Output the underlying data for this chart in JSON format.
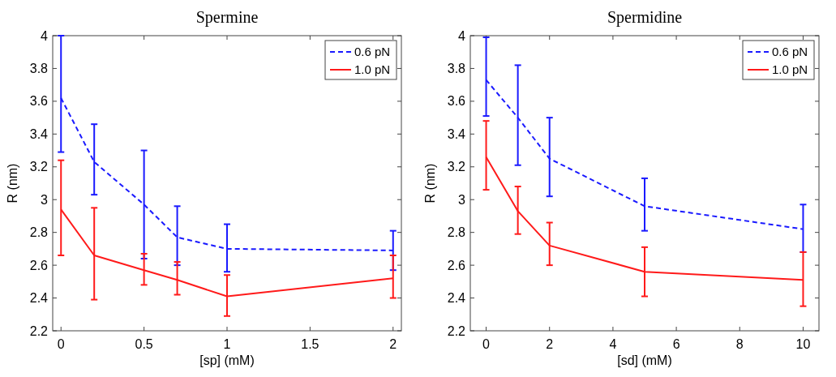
{
  "chart_data": [
    {
      "type": "line",
      "title": "Spermine",
      "xlabel": "[sp] (mM)",
      "ylabel": "R (nm)",
      "x": [
        0,
        0.2,
        0.5,
        0.7,
        1,
        2
      ],
      "xlim": [
        -0.05,
        2.05
      ],
      "xticks": [
        0,
        0.5,
        1,
        1.5,
        2
      ],
      "ylim": [
        2.2,
        4
      ],
      "yticks": [
        2.2,
        2.4,
        2.6,
        2.8,
        3,
        3.2,
        3.4,
        3.6,
        3.8,
        4
      ],
      "legend": "top right",
      "grid": false,
      "marker": "none",
      "series": [
        {
          "name": "0.6 pN",
          "color": "#1a1aff",
          "line_style": "dashed",
          "values": [
            3.62,
            3.23,
            2.97,
            2.77,
            2.7,
            2.69
          ],
          "errors": [
            [
              3.29,
              4.0
            ],
            [
              3.03,
              3.46
            ],
            [
              2.64,
              3.3
            ],
            [
              2.6,
              2.96
            ],
            [
              2.56,
              2.85
            ],
            [
              2.57,
              2.81
            ]
          ]
        },
        {
          "name": "1.0 pN",
          "color": "#ff1a1a",
          "line_style": "solid",
          "values": [
            2.94,
            2.66,
            2.57,
            2.51,
            2.41,
            2.52
          ],
          "errors": [
            [
              2.66,
              3.24
            ],
            [
              2.39,
              2.95
            ],
            [
              2.48,
              2.67
            ],
            [
              2.42,
              2.62
            ],
            [
              2.29,
              2.54
            ],
            [
              2.4,
              2.66
            ]
          ]
        }
      ]
    },
    {
      "type": "line",
      "title": "Spermidine",
      "xlabel": "[sd] (mM)",
      "ylabel": "R (nm)",
      "x": [
        0,
        1,
        2,
        5,
        10
      ],
      "xlim": [
        -0.5,
        10.5
      ],
      "xticks": [
        0,
        2,
        4,
        6,
        8,
        10
      ],
      "ylim": [
        2.2,
        4
      ],
      "yticks": [
        2.2,
        2.4,
        2.6,
        2.8,
        3,
        3.2,
        3.4,
        3.6,
        3.8,
        4
      ],
      "legend": "top right",
      "grid": false,
      "marker": "none",
      "series": [
        {
          "name": "0.6 pN",
          "color": "#1a1aff",
          "line_style": "dashed",
          "values": [
            3.73,
            3.5,
            3.25,
            2.96,
            2.82
          ],
          "errors": [
            [
              3.51,
              3.99
            ],
            [
              3.21,
              3.82
            ],
            [
              3.02,
              3.5
            ],
            [
              2.81,
              3.13
            ],
            [
              2.68,
              2.97
            ]
          ]
        },
        {
          "name": "1.0 pN",
          "color": "#ff1a1a",
          "line_style": "solid",
          "values": [
            3.26,
            2.93,
            2.72,
            2.56,
            2.51
          ],
          "errors": [
            [
              3.06,
              3.48
            ],
            [
              2.79,
              3.08
            ],
            [
              2.6,
              2.86
            ],
            [
              2.41,
              2.71
            ],
            [
              2.35,
              2.68
            ]
          ]
        }
      ]
    }
  ]
}
